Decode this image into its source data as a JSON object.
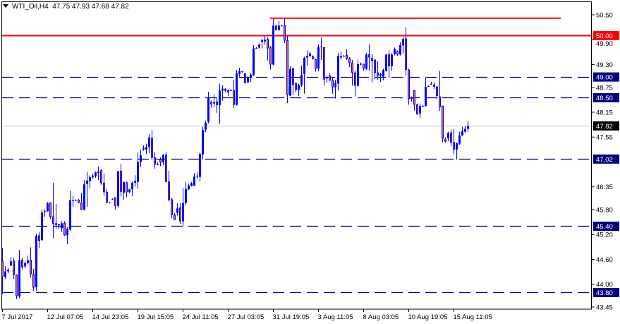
{
  "header": {
    "symbol": "WTI_Oil,H4",
    "ohlc": "47.75 47.93 47.68 47.82"
  },
  "colors": {
    "bull": "#0000ff",
    "bear_fill": "#f0642a",
    "bear_border": "#0000ff",
    "resistance": "#ff0000",
    "level": "#000080",
    "current": "#c0c0c0",
    "current_label": "#000000"
  },
  "chart_data": {
    "type": "candlestick",
    "timeframe": "H4",
    "ylim": [
      43.45,
      50.5
    ],
    "y_ticks": [
      "50.50",
      "49.90",
      "49.30",
      "48.75",
      "48.15",
      "47.55",
      "46.35",
      "45.80",
      "45.20",
      "44.60",
      "44.00",
      "43.45"
    ],
    "x_labels": [
      {
        "bar": 0,
        "label": "7 Jul 2017"
      },
      {
        "bar": 16,
        "label": "12 Jul 07:05"
      },
      {
        "bar": 32,
        "label": "14 Jul 23:05"
      },
      {
        "bar": 48,
        "label": "19 Jul 15:05"
      },
      {
        "bar": 64,
        "label": "24 Jul 11:05"
      },
      {
        "bar": 80,
        "label": "27 Jul 03:05"
      },
      {
        "bar": 96,
        "label": "31 Jul 19:05"
      },
      {
        "bar": 112,
        "label": "3 Aug 11:05"
      },
      {
        "bar": 128,
        "label": "8 Aug 03:05"
      },
      {
        "bar": 144,
        "label": "10 Aug 19:05"
      },
      {
        "bar": 160,
        "label": "15 Aug 11:05"
      }
    ],
    "levels": [
      {
        "price": 50.0,
        "label": "50.00",
        "style": "solid",
        "kind": "resistance"
      },
      {
        "price": 49.0,
        "label": "49.00",
        "style": "dashed",
        "kind": "level"
      },
      {
        "price": 48.5,
        "label": "48.50",
        "style": "dashed",
        "kind": "level"
      },
      {
        "price": 47.02,
        "label": "47.02",
        "style": "dashed",
        "kind": "level"
      },
      {
        "price": 45.4,
        "label": "45.40",
        "style": "dashed",
        "kind": "level"
      },
      {
        "price": 43.8,
        "label": "43.80",
        "style": "dashed",
        "kind": "level"
      },
      {
        "price": 47.82,
        "label": "47.82",
        "style": "solid",
        "kind": "current"
      }
    ],
    "trendline": {
      "price": 50.42,
      "from_bar": 95,
      "to_bar": 198
    },
    "candles_ohlc": [
      [
        44.56,
        44.88,
        43.76,
        44.18
      ],
      [
        44.18,
        44.44,
        44.13,
        44.31
      ],
      [
        44.31,
        44.39,
        44.26,
        44.35
      ],
      [
        44.45,
        44.66,
        44.44,
        44.55
      ],
      [
        44.56,
        44.64,
        44.13,
        44.22
      ],
      [
        44.22,
        44.24,
        43.64,
        43.71
      ],
      [
        43.71,
        44.83,
        43.66,
        44.58
      ],
      [
        44.58,
        44.64,
        44.35,
        44.41
      ],
      [
        44.43,
        44.55,
        44.38,
        44.51
      ],
      [
        44.51,
        44.69,
        44.48,
        44.58
      ],
      [
        44.58,
        44.89,
        44.17,
        44.24
      ],
      [
        44.24,
        44.37,
        43.84,
        43.92
      ],
      [
        43.93,
        45.22,
        43.84,
        45.17
      ],
      [
        45.17,
        45.25,
        44.88,
        45.05
      ],
      [
        45.06,
        45.8,
        45.06,
        45.73
      ],
      [
        45.75,
        45.8,
        45.63,
        45.77
      ],
      [
        45.76,
        45.98,
        45.75,
        45.95
      ],
      [
        45.96,
        45.98,
        45.58,
        45.63
      ],
      [
        45.63,
        46.45,
        45.11,
        45.46
      ],
      [
        45.43,
        45.94,
        45.34,
        45.47
      ],
      [
        45.42,
        45.46,
        45.34,
        45.45
      ],
      [
        45.35,
        45.52,
        45.26,
        45.47
      ],
      [
        45.47,
        45.52,
        45.17,
        45.18
      ],
      [
        45.18,
        45.38,
        44.97,
        45.34
      ],
      [
        45.32,
        46.26,
        45.29,
        46.03
      ],
      [
        46.01,
        46.13,
        45.86,
        46.03
      ],
      [
        46.03,
        46.05,
        46.01,
        46.03
      ],
      [
        46.03,
        46.06,
        45.95,
        45.97
      ],
      [
        45.96,
        46.2,
        45.79,
        45.8
      ],
      [
        45.8,
        46.51,
        45.78,
        46.41
      ],
      [
        46.42,
        46.71,
        45.87,
        46.5
      ],
      [
        46.49,
        46.63,
        46.31,
        46.58
      ],
      [
        46.59,
        46.67,
        46.55,
        46.62
      ],
      [
        46.6,
        46.72,
        46.57,
        46.7
      ],
      [
        46.68,
        46.84,
        46.51,
        46.72
      ],
      [
        46.74,
        46.78,
        46.4,
        46.44
      ],
      [
        46.44,
        46.67,
        46.13,
        46.22
      ],
      [
        46.22,
        46.3,
        45.96,
        45.97
      ],
      [
        45.97,
        45.99,
        45.96,
        45.97
      ],
      [
        46.05,
        46.07,
        46.04,
        46.05
      ],
      [
        46.09,
        46.09,
        45.8,
        45.89
      ],
      [
        45.89,
        46.73,
        45.85,
        46.73
      ],
      [
        46.73,
        46.91,
        46.12,
        46.23
      ],
      [
        46.21,
        46.47,
        46.04,
        46.47
      ],
      [
        46.45,
        46.47,
        46.1,
        46.22
      ],
      [
        46.22,
        46.3,
        46.2,
        46.29
      ],
      [
        46.29,
        46.47,
        46.13,
        46.45
      ],
      [
        46.45,
        46.63,
        46.36,
        46.49
      ],
      [
        46.47,
        47.18,
        46.3,
        46.95
      ],
      [
        46.95,
        47.25,
        46.83,
        47.11
      ],
      [
        47.25,
        47.35,
        47.22,
        47.28
      ],
      [
        47.25,
        47.39,
        47.14,
        47.31
      ],
      [
        47.31,
        47.62,
        47.16,
        47.54
      ],
      [
        47.52,
        47.72,
        46.99,
        47.05
      ],
      [
        47.05,
        47.19,
        46.79,
        46.89
      ],
      [
        46.88,
        46.94,
        46.87,
        46.9
      ],
      [
        47.01,
        47.06,
        46.85,
        46.94
      ],
      [
        46.94,
        47.14,
        46.87,
        47.12
      ],
      [
        47.12,
        47.19,
        46.46,
        46.47
      ],
      [
        46.47,
        46.74,
        46.0,
        46.03
      ],
      [
        46.04,
        46.09,
        45.59,
        45.67
      ],
      [
        45.67,
        45.72,
        45.55,
        45.55
      ],
      [
        45.72,
        45.95,
        45.66,
        45.83
      ],
      [
        45.84,
        45.95,
        45.46,
        45.52
      ],
      [
        45.52,
        46.33,
        45.41,
        45.96
      ],
      [
        45.96,
        46.47,
        45.91,
        46.3
      ],
      [
        46.29,
        46.43,
        46.27,
        46.38
      ],
      [
        46.37,
        46.47,
        46.36,
        46.44
      ],
      [
        46.38,
        46.68,
        46.37,
        46.6
      ],
      [
        46.6,
        46.7,
        46.55,
        46.62
      ],
      [
        46.59,
        47.18,
        46.47,
        47.14
      ],
      [
        47.13,
        47.8,
        47.01,
        47.72
      ],
      [
        47.73,
        47.95,
        47.67,
        47.9
      ],
      [
        47.92,
        48.64,
        47.88,
        48.5
      ],
      [
        48.39,
        48.43,
        48.26,
        48.34
      ],
      [
        48.36,
        48.58,
        48.27,
        48.39
      ],
      [
        48.4,
        48.5,
        48.13,
        48.32
      ],
      [
        48.32,
        48.84,
        47.87,
        48.67
      ],
      [
        48.67,
        48.8,
        48.43,
        48.72
      ],
      [
        48.67,
        48.73,
        48.63,
        48.71
      ],
      [
        48.63,
        48.7,
        48.54,
        48.68
      ],
      [
        48.68,
        48.7,
        48.66,
        48.68
      ],
      [
        48.67,
        48.93,
        48.25,
        48.33
      ],
      [
        48.33,
        49.17,
        48.31,
        49.09
      ],
      [
        49.07,
        49.22,
        49.01,
        49.14
      ],
      [
        49.13,
        49.15,
        49.1,
        49.14
      ],
      [
        49.08,
        49.08,
        48.85,
        48.85
      ],
      [
        48.87,
        49.01,
        48.86,
        48.99
      ],
      [
        48.98,
        49.1,
        48.88,
        49.06
      ],
      [
        49.04,
        49.77,
        49.03,
        49.69
      ],
      [
        49.7,
        49.72,
        49.68,
        49.7
      ],
      [
        49.71,
        49.81,
        49.69,
        49.78
      ],
      [
        49.85,
        49.92,
        49.69,
        49.89
      ],
      [
        49.86,
        49.98,
        49.78,
        49.9
      ],
      [
        49.91,
        49.95,
        49.4,
        49.69
      ],
      [
        49.71,
        49.75,
        49.18,
        49.3
      ],
      [
        49.3,
        50.4,
        49.28,
        50.24
      ],
      [
        50.23,
        50.26,
        50.13,
        50.13
      ],
      [
        50.13,
        50.36,
        50.13,
        50.24
      ],
      [
        50.24,
        50.26,
        50.22,
        50.24
      ],
      [
        50.24,
        50.4,
        49.82,
        49.88
      ],
      [
        49.88,
        49.98,
        48.37,
        48.57
      ],
      [
        48.55,
        49.26,
        48.54,
        49.2
      ],
      [
        49.2,
        49.22,
        48.56,
        48.81
      ],
      [
        48.84,
        48.87,
        48.63,
        48.69
      ],
      [
        48.69,
        48.84,
        48.54,
        48.81
      ],
      [
        48.8,
        49.27,
        48.76,
        49.06
      ],
      [
        49.07,
        49.49,
        48.6,
        49.46
      ],
      [
        49.47,
        49.64,
        49.28,
        49.51
      ],
      [
        49.51,
        49.61,
        49.47,
        49.57
      ],
      [
        49.49,
        49.52,
        49.42,
        49.44
      ],
      [
        49.42,
        49.44,
        49.13,
        49.2
      ],
      [
        49.2,
        49.78,
        49.14,
        49.73
      ],
      [
        49.73,
        49.95,
        49.41,
        49.74
      ],
      [
        49.71,
        49.72,
        48.79,
        48.94
      ],
      [
        48.97,
        49.03,
        48.86,
        48.98
      ],
      [
        49.03,
        49.09,
        48.9,
        48.92
      ],
      [
        48.92,
        48.98,
        48.6,
        48.75
      ],
      [
        48.75,
        48.93,
        48.48,
        48.86
      ],
      [
        48.84,
        49.58,
        48.67,
        49.51
      ],
      [
        49.47,
        49.62,
        49.43,
        49.51
      ],
      [
        49.51,
        49.53,
        49.49,
        49.51
      ],
      [
        49.52,
        49.67,
        49.41,
        49.44
      ],
      [
        49.44,
        49.48,
        49.24,
        49.34
      ],
      [
        49.34,
        49.41,
        48.79,
        49.1
      ],
      [
        49.1,
        49.15,
        48.53,
        48.79
      ],
      [
        48.79,
        49.42,
        48.76,
        49.31
      ],
      [
        49.3,
        49.35,
        49.28,
        49.32
      ],
      [
        49.31,
        49.32,
        49.15,
        49.2
      ],
      [
        49.2,
        49.58,
        49.17,
        49.54
      ],
      [
        49.54,
        49.79,
        49.15,
        49.47
      ],
      [
        49.45,
        49.55,
        48.87,
        49.39
      ],
      [
        49.41,
        49.41,
        48.94,
        49.1
      ],
      [
        49.1,
        49.38,
        48.93,
        49.03
      ],
      [
        49.03,
        49.1,
        48.88,
        49.07
      ],
      [
        49.01,
        49.2,
        48.92,
        49.17
      ],
      [
        49.15,
        49.56,
        49.13,
        49.54
      ],
      [
        49.54,
        49.64,
        48.97,
        49.26
      ],
      [
        49.26,
        49.58,
        49.15,
        49.54
      ],
      [
        49.55,
        49.71,
        49.52,
        49.68
      ],
      [
        49.62,
        49.64,
        49.51,
        49.54
      ],
      [
        49.54,
        49.84,
        49.52,
        49.77
      ],
      [
        49.76,
        49.97,
        49.56,
        49.92
      ],
      [
        49.92,
        50.2,
        49.03,
        49.17
      ],
      [
        49.17,
        49.2,
        48.33,
        48.47
      ],
      [
        48.5,
        48.53,
        48.41,
        48.47
      ],
      [
        48.67,
        48.69,
        48.19,
        48.33
      ],
      [
        48.33,
        48.36,
        48.09,
        48.1
      ],
      [
        48.12,
        48.36,
        48.01,
        48.3
      ],
      [
        48.3,
        48.32,
        48.28,
        48.3
      ],
      [
        48.3,
        48.97,
        48.29,
        48.76
      ],
      [
        48.78,
        48.8,
        48.76,
        48.78
      ],
      [
        48.82,
        48.88,
        48.81,
        48.84
      ],
      [
        48.81,
        48.87,
        48.71,
        48.76
      ],
      [
        48.76,
        48.79,
        48.47,
        48.54
      ],
      [
        48.52,
        49.15,
        48.18,
        48.27
      ],
      [
        48.3,
        48.3,
        47.42,
        47.51
      ],
      [
        47.5,
        47.54,
        47.42,
        47.44
      ],
      [
        47.52,
        47.68,
        47.45,
        47.65
      ],
      [
        47.65,
        47.73,
        47.33,
        47.42
      ],
      [
        47.42,
        47.75,
        47.14,
        47.25
      ],
      [
        47.25,
        47.42,
        47.01,
        47.4
      ],
      [
        47.39,
        47.68,
        47.36,
        47.59
      ],
      [
        47.59,
        47.8,
        47.58,
        47.69
      ],
      [
        47.68,
        47.82,
        47.65,
        47.75
      ],
      [
        47.75,
        47.93,
        47.68,
        47.82
      ]
    ]
  }
}
